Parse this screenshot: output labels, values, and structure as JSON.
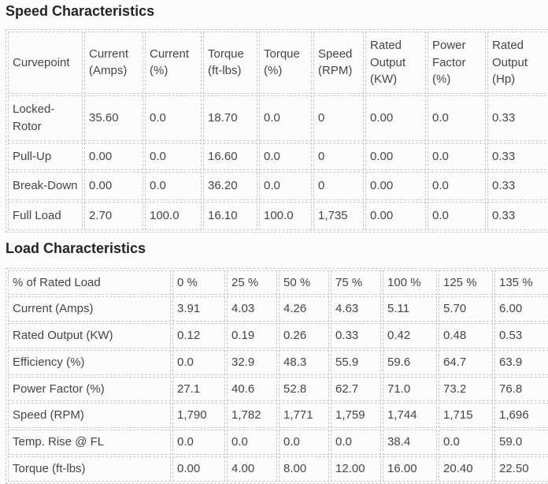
{
  "theme": {
    "background": "#fcfcfc",
    "border_dashed": "#c9c9c9",
    "title_text": "#212529",
    "cell_text": "#454545"
  },
  "speed_table": {
    "title": "Speed Characteristics",
    "columns": [
      "Curvepoint",
      "Current (Amps)",
      "Current (%)",
      "Torque (ft-lbs)",
      "Torque (%)",
      "Speed (RPM)",
      "Rated Output (KW)",
      "Power Factor (%)",
      "Rated Output (Hp)"
    ],
    "rows": [
      [
        "Locked-Rotor",
        "35.60",
        "0.0",
        "18.70",
        "0.0",
        "0",
        "0.00",
        "0.0",
        "0.33"
      ],
      [
        "Pull-Up",
        "0.00",
        "0.0",
        "16.60",
        "0.0",
        "0",
        "0.00",
        "0.0",
        "0.33"
      ],
      [
        "Break-Down",
        "0.00",
        "0.0",
        "36.20",
        "0.0",
        "0",
        "0.00",
        "0.0",
        "0.33"
      ],
      [
        "Full Load",
        "2.70",
        "100.0",
        "16.10",
        "100.0",
        "1,735",
        "0.00",
        "0.0",
        "0.33"
      ]
    ]
  },
  "load_table": {
    "title": "Load Characteristics",
    "rows": [
      [
        "% of Rated Load",
        "0 %",
        "25 %",
        "50 %",
        "75 %",
        "100 %",
        "125 %",
        "135 %"
      ],
      [
        "Current (Amps)",
        "3.91",
        "4.03",
        "4.26",
        "4.63",
        "5.11",
        "5.70",
        "6.00"
      ],
      [
        "Rated Output (KW)",
        "0.12",
        "0.19",
        "0.26",
        "0.33",
        "0.42",
        "0.48",
        "0.53"
      ],
      [
        "Efficiency (%)",
        "0.0",
        "32.9",
        "48.3",
        "55.9",
        "59.6",
        "64.7",
        "63.9"
      ],
      [
        "Power Factor (%)",
        "27.1",
        "40.6",
        "52.8",
        "62.7",
        "71.0",
        "73.2",
        "76.8"
      ],
      [
        "Speed (RPM)",
        "1,790",
        "1,782",
        "1,771",
        "1,759",
        "1,744",
        "1,715",
        "1,696"
      ],
      [
        "Temp. Rise @ FL",
        "0.0",
        "0.0",
        "0.0",
        "0.0",
        "38.4",
        "0.0",
        "59.0"
      ],
      [
        "Torque (ft-lbs)",
        "0.00",
        "4.00",
        "8.00",
        "12.00",
        "16.00",
        "20.40",
        "22.50"
      ]
    ]
  }
}
